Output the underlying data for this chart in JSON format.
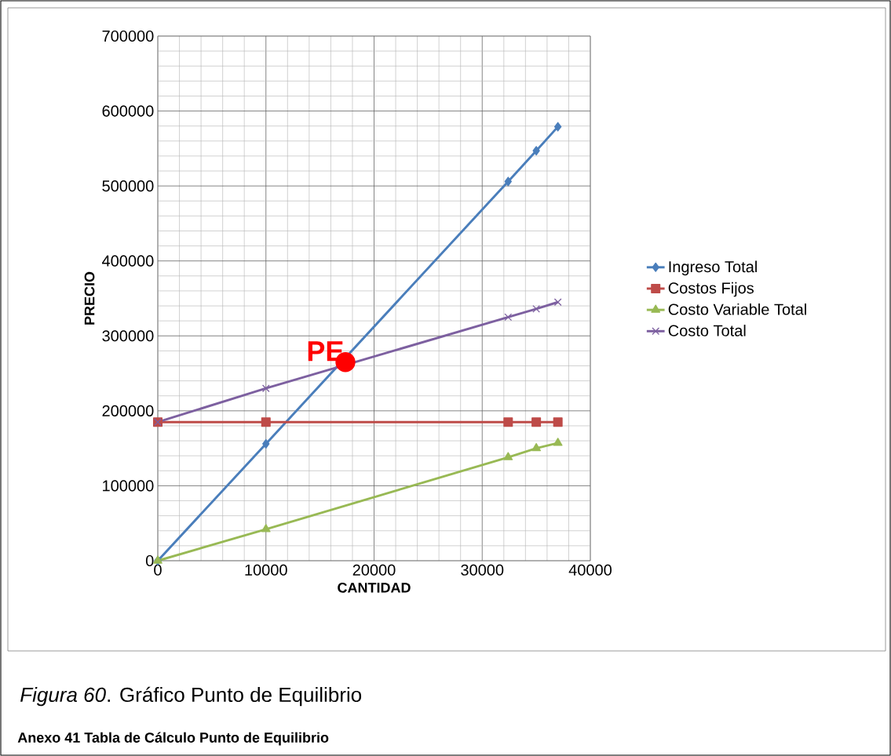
{
  "chart_data": {
    "type": "line",
    "xlabel": "CANTIDAD",
    "ylabel": "PRECIO",
    "xlim": [
      0,
      40000
    ],
    "ylim": [
      0,
      700000
    ],
    "xticks": [
      0,
      10000,
      20000,
      30000,
      40000
    ],
    "yticks": [
      0,
      100000,
      200000,
      300000,
      400000,
      500000,
      600000,
      700000
    ],
    "grid": true,
    "legend": "right",
    "x": [
      0,
      10000,
      32400,
      35000,
      37000
    ],
    "series": [
      {
        "name": "Ingreso Total",
        "color": "#4a7ebb",
        "marker": "diamond",
        "values": [
          0,
          156000,
          506000,
          547000,
          579000
        ]
      },
      {
        "name": "Costos Fijos",
        "color": "#be4b48",
        "marker": "square",
        "values": [
          185000,
          185000,
          185000,
          185000,
          185000
        ]
      },
      {
        "name": "Costo Variable Total",
        "color": "#98b954",
        "marker": "triangle",
        "values": [
          0,
          42000,
          138000,
          150000,
          157000
        ]
      },
      {
        "name": "Costo Total",
        "color": "#7d60a0",
        "marker": "cross",
        "values": [
          185000,
          230000,
          325000,
          336000,
          345000
        ]
      },
      {
        "type": "scatter",
        "color": "#ff0000",
        "marker": "circle",
        "x": [
          17350
        ],
        "values": [
          265000
        ]
      }
    ],
    "annotations": [
      {
        "text": "PE",
        "x": 17350,
        "y": 265000
      },
      "*Figura 60*. Gráfico Punto de Equilibrio",
      "Anexo 41 Tabla de Cálculo Punto de Equilibrio"
    ]
  }
}
